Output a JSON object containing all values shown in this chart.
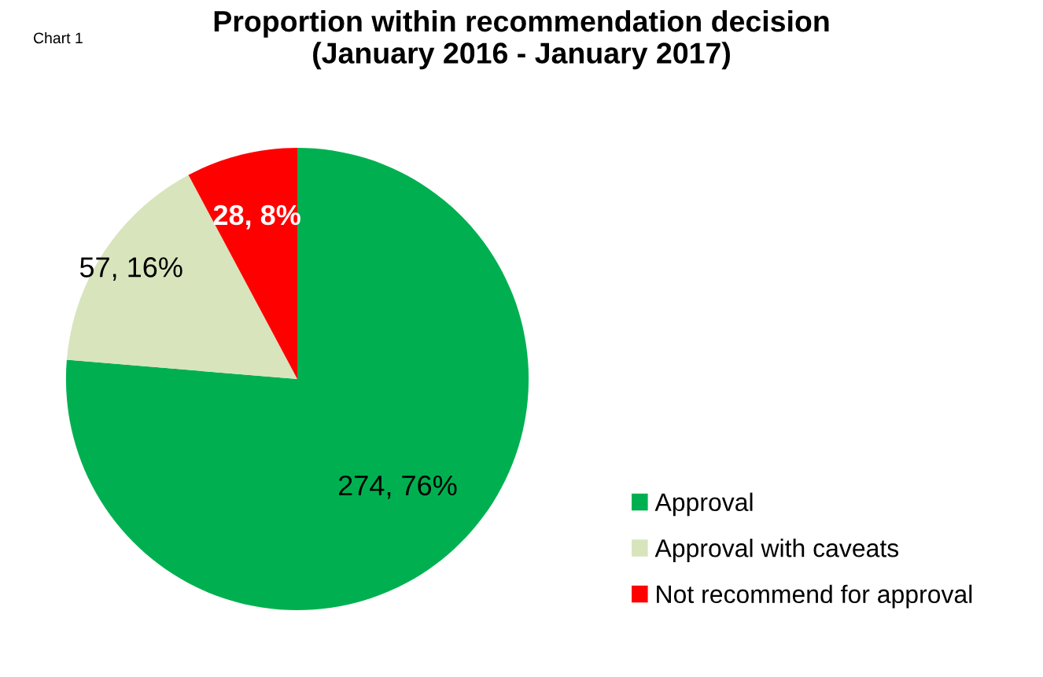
{
  "chart_data": {
    "type": "pie",
    "title": "Proportion within recommendation decision\n(January 2016 - January 2017)",
    "categories": [
      "Approval",
      "Approval with caveats",
      "Not recommend for approval"
    ],
    "values": [
      274,
      57,
      28
    ],
    "colors": [
      "#00b050",
      "#d8e4bc",
      "#ff0000"
    ],
    "value_labels": [
      "274, 76%",
      "57, 16%",
      "28, 8%"
    ],
    "annotations": [
      "Chart 1"
    ],
    "legend": "right"
  }
}
